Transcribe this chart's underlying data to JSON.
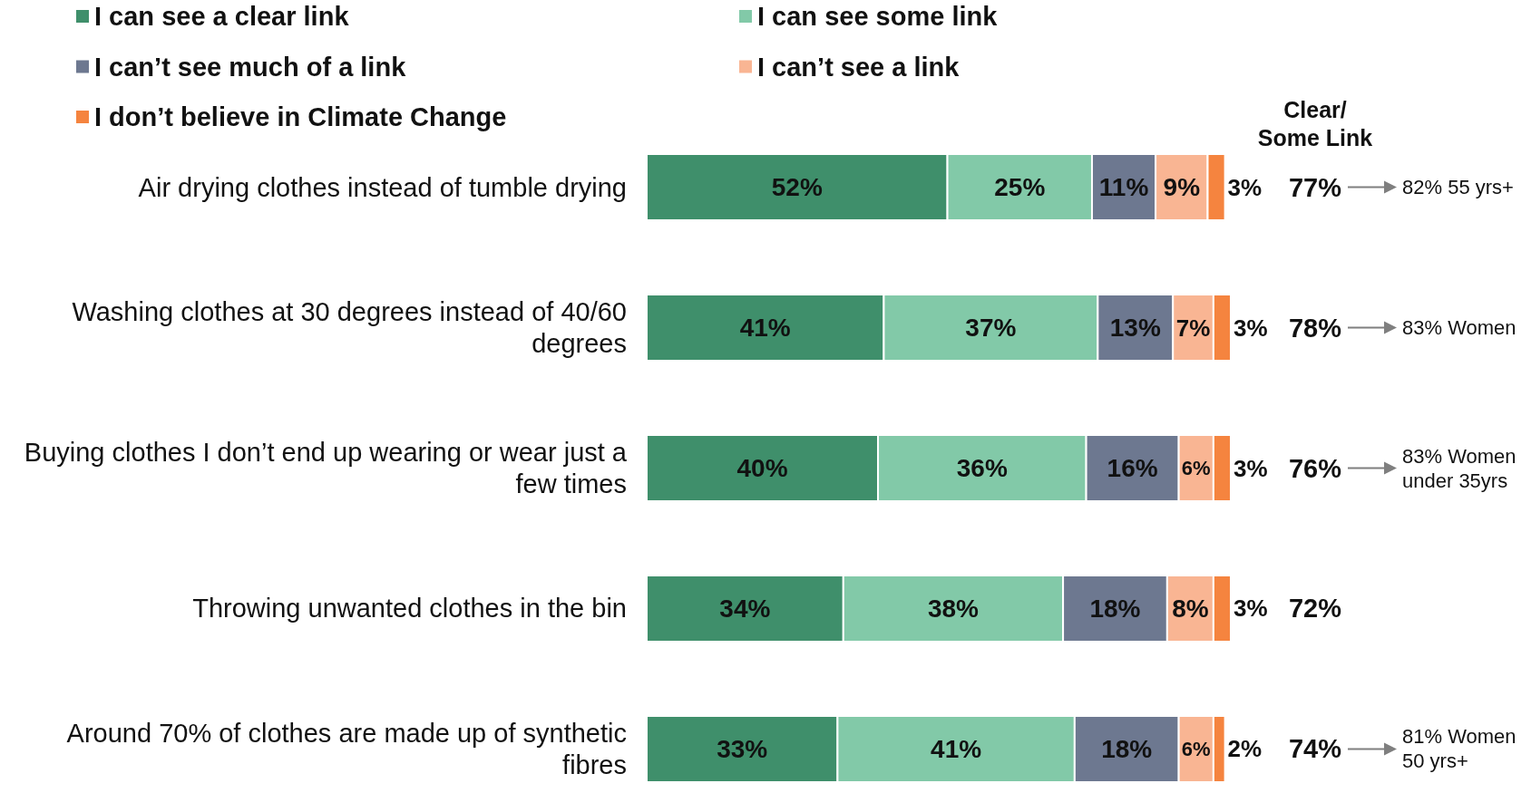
{
  "chart_data": {
    "type": "bar",
    "orientation": "horizontal",
    "stacked": true,
    "categories": [
      "Air drying clothes instead of tumble drying",
      "Washing clothes at 30 degrees instead of 40/60 degrees",
      "Buying clothes I don’t end up wearing or wear just a few times",
      "Throwing unwanted clothes in the bin",
      "Around 70% of clothes are made up of synthetic fibres"
    ],
    "series": [
      {
        "name": "I can see a clear link",
        "color": "#3f8f6b",
        "values": [
          52,
          41,
          40,
          34,
          33
        ],
        "value_labels": [
          "52%",
          "41%",
          "40%",
          "34%",
          "33%"
        ]
      },
      {
        "name": "I can see some link",
        "color": "#82c9a8",
        "values": [
          25,
          37,
          36,
          38,
          41
        ],
        "value_labels": [
          "25%",
          "37%",
          "36%",
          "38%",
          "41%"
        ]
      },
      {
        "name": "I can’t see much of a link",
        "color": "#6d7890",
        "values": [
          11,
          13,
          16,
          18,
          18
        ],
        "value_labels": [
          "11%",
          "13%",
          "16%",
          "18%",
          "18%"
        ]
      },
      {
        "name": "I can’t see a link",
        "color": "#f9b593",
        "values": [
          9,
          7,
          6,
          8,
          6
        ],
        "value_labels": [
          "9%",
          "7%",
          "6%",
          "8%",
          "6%"
        ]
      },
      {
        "name": "I don’t believe in Climate Change",
        "color": "#f5843f",
        "values": [
          3,
          3,
          3,
          3,
          2
        ],
        "value_labels": [
          "3%",
          "3%",
          "3%",
          "3%",
          "2%"
        ]
      }
    ],
    "xlim": [
      0,
      101
    ],
    "tick_labels": "y",
    "legend": "top",
    "annotations": [
      "Clear/ Some Link",
      "77%",
      "82% 55 yrs+",
      "78%",
      "83% Women",
      "76%",
      "83% Women under 35yrs",
      "72%",
      "74%",
      "81% Women 50 yrs+"
    ]
  }
}
